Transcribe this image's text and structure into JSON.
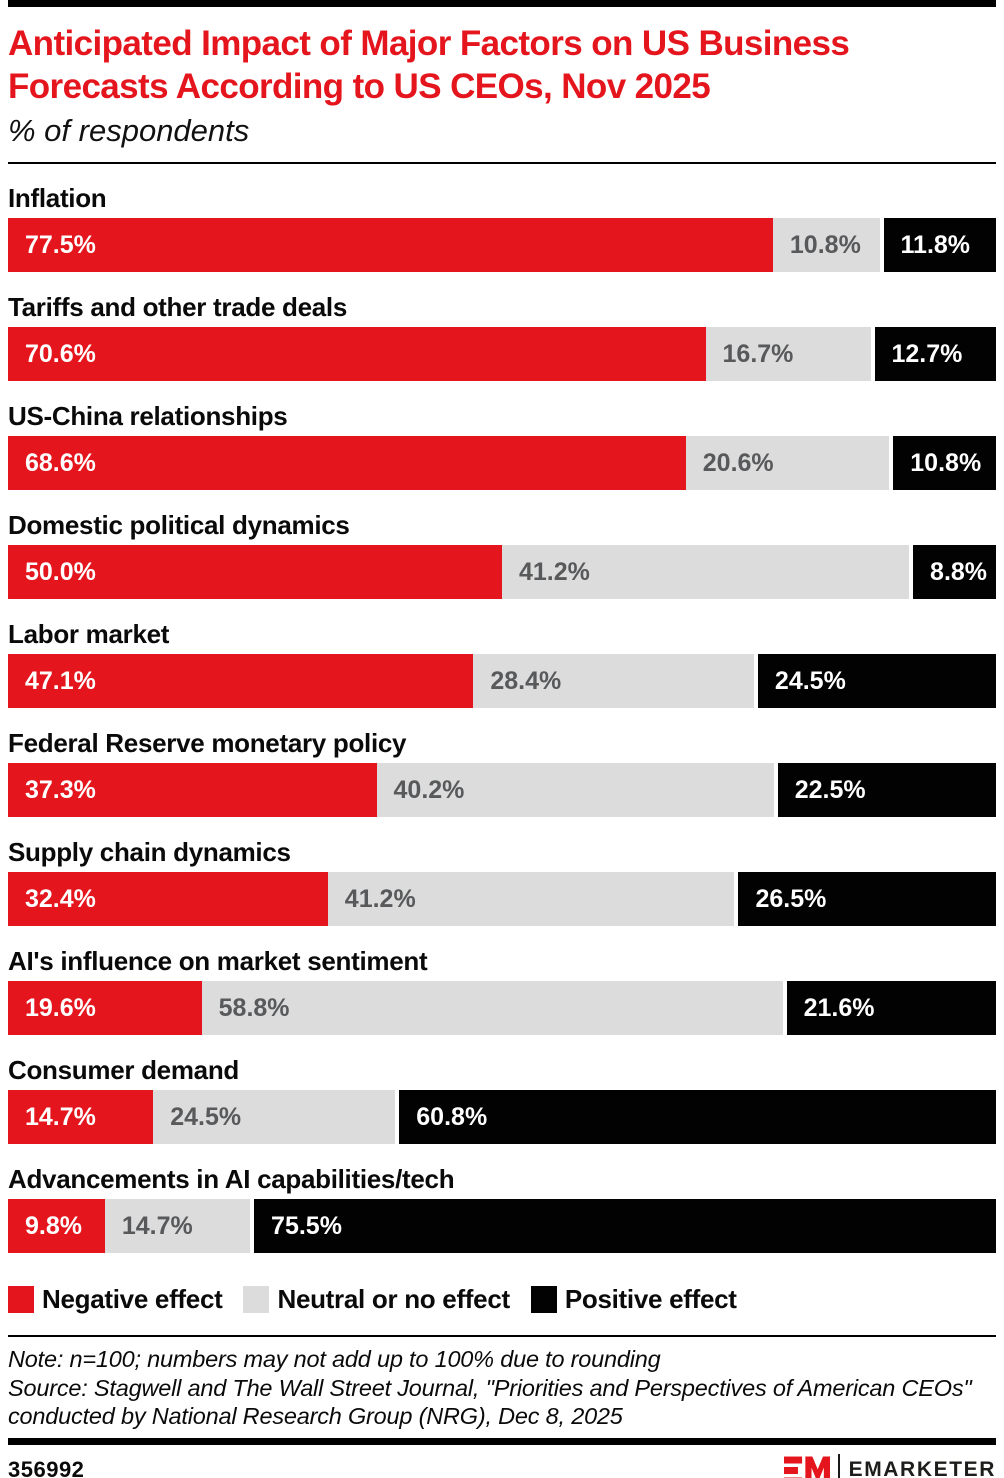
{
  "chart_data": {
    "type": "bar",
    "orientation": "horizontal",
    "stacked": true,
    "title": "Anticipated Impact of Major Factors on US Business Forecasts According to US CEOs, Nov 2025",
    "subtitle": "% of respondents",
    "value_suffix": "%",
    "xlim": [
      0,
      100
    ],
    "grid": false,
    "legend_position": "bottom",
    "categories": [
      "Inflation",
      "Tariffs and other trade deals",
      "US-China relationships",
      "Domestic political dynamics",
      "Labor market",
      "Federal Reserve monetary policy",
      "Supply chain dynamics",
      "AI's influence on market sentiment",
      "Consumer demand",
      "Advancements in AI capabilities/tech"
    ],
    "series": [
      {
        "name": "Negative effect",
        "key": "negative",
        "color": "#e4151d",
        "values": [
          77.5,
          70.6,
          68.6,
          50.0,
          47.1,
          37.3,
          32.4,
          19.6,
          14.7,
          9.8
        ]
      },
      {
        "name": "Neutral or no effect",
        "key": "neutral",
        "color": "#dcdcdc",
        "values": [
          10.8,
          16.7,
          20.6,
          41.2,
          28.4,
          40.2,
          41.2,
          58.8,
          24.5,
          14.7
        ]
      },
      {
        "name": "Positive effect",
        "key": "positive",
        "color": "#020202",
        "values": [
          11.8,
          12.7,
          10.8,
          8.8,
          24.5,
          22.5,
          26.5,
          21.6,
          60.8,
          75.5
        ]
      }
    ]
  },
  "notes": {
    "note_line": "Note: n=100; numbers may not add up to 100% due to rounding",
    "source_line": "Source: Stagwell and The Wall Street Journal, \"Priorities and Perspectives of American CEOs\" conducted by National Research Group (NRG), Dec 8, 2025"
  },
  "footer": {
    "chart_id": "356992",
    "brand_name": "EMARKETER"
  },
  "colors": {
    "title_red": "#e4151d",
    "negative": "#e4151d",
    "neutral": "#dcdcdc",
    "positive": "#020202",
    "neutral_text": "#58595b"
  }
}
